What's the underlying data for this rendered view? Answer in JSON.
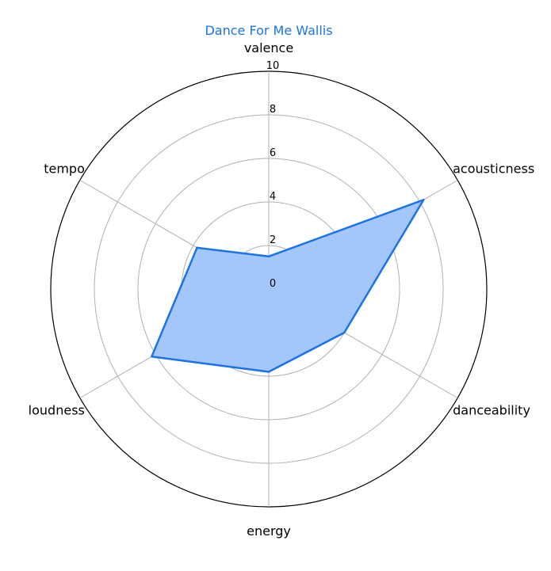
{
  "chart_data": {
    "type": "radar",
    "title": "Dance For Me Wallis",
    "categories": [
      "valence",
      "acousticness",
      "danceability",
      "energy",
      "loudness",
      "tempo"
    ],
    "series": [
      {
        "values": [
          1.5,
          8.2,
          4.0,
          3.8,
          6.2,
          3.8
        ]
      }
    ],
    "rlim": [
      0,
      10
    ],
    "rticks": [
      0,
      2,
      4,
      6,
      8,
      10
    ],
    "grid": true,
    "colors": {
      "line": "#1a73e8",
      "fill": "#a3c7fb",
      "title": "#1a73e8",
      "grid": "#b0b0b0",
      "outer": "#000000"
    }
  }
}
